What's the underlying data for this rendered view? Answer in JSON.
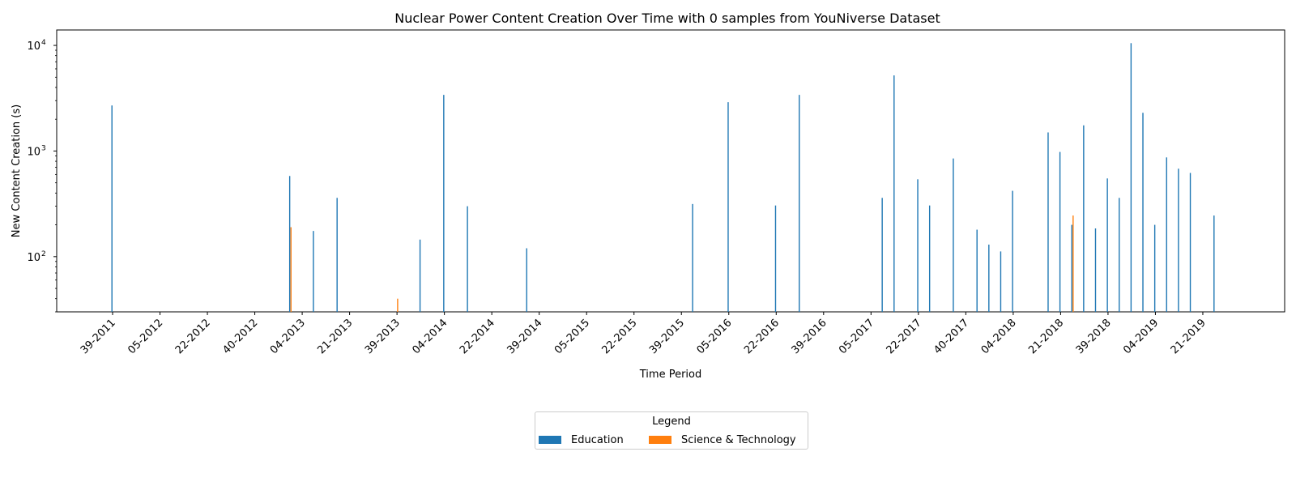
{
  "chart_data": {
    "type": "bar",
    "title": "Nuclear Power Content Creation Over Time with 0 samples from YouNiverse Dataset",
    "xlabel": "Time Period",
    "ylabel": "New Content Creation (s)",
    "yscale": "log",
    "ylim": [
      30,
      14000
    ],
    "y_ticks": [
      100,
      1000,
      10000
    ],
    "y_tick_labels": [
      "10",
      "10",
      "10"
    ],
    "y_tick_exponents": [
      "2",
      "3",
      "4"
    ],
    "grid": false,
    "legend": {
      "title": "Legend",
      "placement": "bottom-center",
      "ncol": 2
    },
    "x_tick_labels": [
      "39-2011",
      "05-2012",
      "22-2012",
      "40-2012",
      "04-2013",
      "21-2013",
      "39-2013",
      "04-2014",
      "22-2014",
      "39-2014",
      "05-2015",
      "22-2015",
      "39-2015",
      "05-2016",
      "22-2016",
      "39-2016",
      "05-2017",
      "22-2017",
      "40-2017",
      "04-2018",
      "21-2018",
      "39-2018",
      "04-2019",
      "21-2019"
    ],
    "series": [
      {
        "name": "Education",
        "color": "#1f77b4",
        "points": [
          {
            "x": 0,
            "y": 2700
          },
          {
            "x": 15,
            "y": 580
          },
          {
            "x": 17,
            "y": 175
          },
          {
            "x": 19,
            "y": 360
          },
          {
            "x": 26,
            "y": 145
          },
          {
            "x": 28,
            "y": 3400
          },
          {
            "x": 30,
            "y": 300
          },
          {
            "x": 35,
            "y": 120
          },
          {
            "x": 49,
            "y": 315
          },
          {
            "x": 52,
            "y": 2900
          },
          {
            "x": 56,
            "y": 305
          },
          {
            "x": 58,
            "y": 3400
          },
          {
            "x": 65,
            "y": 360
          },
          {
            "x": 66,
            "y": 5200
          },
          {
            "x": 68,
            "y": 540
          },
          {
            "x": 69,
            "y": 305
          },
          {
            "x": 71,
            "y": 850
          },
          {
            "x": 73,
            "y": 180
          },
          {
            "x": 74,
            "y": 130
          },
          {
            "x": 75,
            "y": 112
          },
          {
            "x": 76,
            "y": 420
          },
          {
            "x": 79,
            "y": 1500
          },
          {
            "x": 80,
            "y": 980
          },
          {
            "x": 81,
            "y": 200
          },
          {
            "x": 82,
            "y": 1750
          },
          {
            "x": 83,
            "y": 185
          },
          {
            "x": 84,
            "y": 550
          },
          {
            "x": 85,
            "y": 360
          },
          {
            "x": 86,
            "y": 10500
          },
          {
            "x": 87,
            "y": 2300
          },
          {
            "x": 88,
            "y": 200
          },
          {
            "x": 89,
            "y": 870
          },
          {
            "x": 90,
            "y": 680
          },
          {
            "x": 91,
            "y": 620
          },
          {
            "x": 93,
            "y": 245
          }
        ]
      },
      {
        "name": "Science & Technology",
        "color": "#ff7f0e",
        "points": [
          {
            "x": 15,
            "y": 190
          },
          {
            "x": 24,
            "y": 40
          },
          {
            "x": 81,
            "y": 245
          }
        ]
      }
    ]
  }
}
